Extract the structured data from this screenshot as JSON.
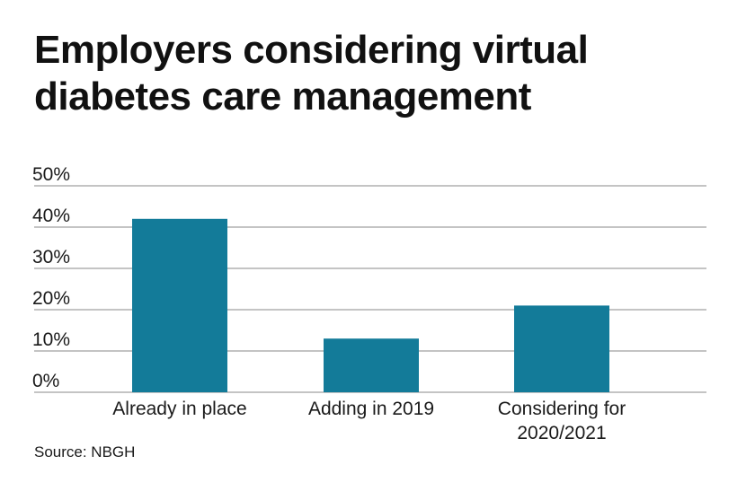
{
  "header": {
    "title": "Employers considering virtual diabetes care management"
  },
  "chart_data": {
    "type": "bar",
    "categories": [
      "Already in place",
      "Adding in 2019",
      "Considering for 2020/2021"
    ],
    "category_lines": [
      [
        "Already in place"
      ],
      [
        "Adding in 2019"
      ],
      [
        "Considering for",
        "2020/2021"
      ]
    ],
    "values": [
      42,
      13,
      21
    ],
    "value_unit": "%",
    "ylim": [
      0,
      50
    ],
    "yticks": [
      0,
      10,
      20,
      30,
      40,
      50
    ],
    "ytick_labels": [
      "0%",
      "10%",
      "20%",
      "30%",
      "40%",
      "50%"
    ],
    "grid": true,
    "bar_color": "#137b99",
    "grid_color": "#888888",
    "title": "Employers considering virtual diabetes care management",
    "xlabel": "",
    "ylabel": ""
  },
  "footer": {
    "source": "Source: NBGH"
  }
}
